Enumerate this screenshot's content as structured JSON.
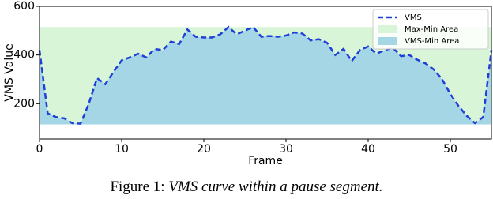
{
  "chart_data": {
    "type": "line",
    "xlabel": "Frame",
    "ylabel": "VMS Value",
    "x": [
      0,
      1,
      2,
      3,
      4,
      5,
      6,
      7,
      8,
      9,
      10,
      11,
      12,
      13,
      14,
      15,
      16,
      17,
      18,
      19,
      20,
      21,
      22,
      23,
      24,
      25,
      26,
      27,
      28,
      29,
      30,
      31,
      32,
      33,
      34,
      35,
      36,
      37,
      38,
      39,
      40,
      41,
      42,
      43,
      44,
      45,
      46,
      47,
      48,
      49,
      50,
      51,
      52,
      53,
      54,
      55
    ],
    "series": [
      {
        "name": "VMS",
        "color": "#1f3fd8",
        "values": [
          420,
          160,
          145,
          140,
          120,
          118,
          200,
          305,
          280,
          330,
          378,
          390,
          405,
          390,
          425,
          420,
          455,
          445,
          505,
          475,
          472,
          472,
          485,
          515,
          485,
          500,
          515,
          475,
          478,
          475,
          480,
          493,
          488,
          460,
          465,
          450,
          400,
          425,
          375,
          420,
          435,
          405,
          420,
          430,
          395,
          400,
          380,
          365,
          340,
          300,
          240,
          190,
          150,
          120,
          145,
          420
        ]
      }
    ],
    "min_value": 115,
    "max_value": 515,
    "areas": [
      {
        "name": "Max-Min Area",
        "color": "#d8f5d8"
      },
      {
        "name": "VMS-Min Area",
        "color": "#a4d6e6"
      }
    ],
    "xlim": [
      0,
      55
    ],
    "ylim": [
      55,
      600
    ],
    "xticks": [
      0,
      10,
      20,
      30,
      40,
      50
    ],
    "yticks": [
      200,
      400,
      600
    ],
    "legend": "upper right"
  },
  "caption": {
    "label": "Figure 1:",
    "text": "VMS curve within a pause segment."
  }
}
